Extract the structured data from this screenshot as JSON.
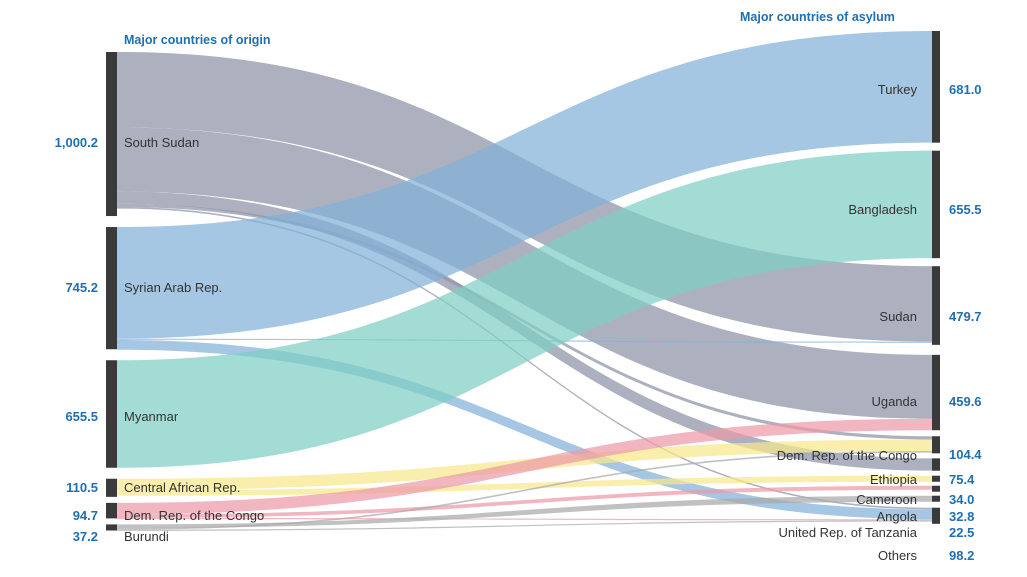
{
  "headers": {
    "origin": "Major countries of origin",
    "asylum": "Major countries of asylum"
  },
  "colors": {
    "node_bar": "#3a3a3a",
    "south_sudan": "#8d93a6",
    "syria": "#82b1d9",
    "myanmar": "#7fcfc3",
    "car": "#f7e88a",
    "drc": "#ec9aa6",
    "burundi": "#a9a9a9",
    "value_text": "#1f6fb2"
  },
  "origins": [
    {
      "key": "south_sudan",
      "name": "South Sudan",
      "value": "1,000.2"
    },
    {
      "key": "syria",
      "name": "Syrian Arab Rep.",
      "value": "745.2"
    },
    {
      "key": "myanmar",
      "name": "Myanmar",
      "value": "655.5"
    },
    {
      "key": "car",
      "name": "Central African Rep.",
      "value": "110.5"
    },
    {
      "key": "drc",
      "name": "Dem. Rep. of the Congo",
      "value": "94.7"
    },
    {
      "key": "burundi",
      "name": "Burundi",
      "value": "37.2"
    }
  ],
  "asylums": [
    {
      "key": "turkey",
      "name": "Turkey",
      "value": "681.0"
    },
    {
      "key": "bangladesh",
      "name": "Bangladesh",
      "value": "655.5"
    },
    {
      "key": "sudan",
      "name": "Sudan",
      "value": "479.7"
    },
    {
      "key": "uganda",
      "name": "Uganda",
      "value": "459.6"
    },
    {
      "key": "drc_a",
      "name": "Dem. Rep. of the Congo",
      "value": "104.4"
    },
    {
      "key": "ethiopia",
      "name": "Ethiopia",
      "value": "75.4"
    },
    {
      "key": "cameroon",
      "name": "Cameroon",
      "value": "34.0"
    },
    {
      "key": "angola",
      "name": "Angola",
      "value": "32.8"
    },
    {
      "key": "tanzania",
      "name": "United Rep. of Tanzania",
      "value": "22.5"
    },
    {
      "key": "others",
      "name": "Others",
      "value": "98.2"
    }
  ],
  "flows": [
    {
      "from": "south_sudan",
      "to": "sudan",
      "value": 460
    },
    {
      "from": "south_sudan",
      "to": "uganda",
      "value": 390
    },
    {
      "from": "south_sudan",
      "to": "ethiopia",
      "value": 75
    },
    {
      "from": "south_sudan",
      "to": "drc_a",
      "value": 20
    },
    {
      "from": "south_sudan",
      "to": "others",
      "value": 10
    },
    {
      "from": "syria",
      "to": "turkey",
      "value": 681
    },
    {
      "from": "syria",
      "to": "sudan",
      "value": 4
    },
    {
      "from": "syria",
      "to": "others",
      "value": 60
    },
    {
      "from": "myanmar",
      "to": "bangladesh",
      "value": 655.5
    },
    {
      "from": "car",
      "to": "drc_a",
      "value": 70
    },
    {
      "from": "car",
      "to": "cameroon",
      "value": 34
    },
    {
      "from": "drc",
      "to": "uganda",
      "value": 70
    },
    {
      "from": "drc",
      "to": "angola",
      "value": 22
    },
    {
      "from": "drc",
      "to": "others",
      "value": 3
    },
    {
      "from": "burundi",
      "to": "tanzania",
      "value": 22.5
    },
    {
      "from": "burundi",
      "to": "drc_a",
      "value": 10
    },
    {
      "from": "burundi",
      "to": "others",
      "value": 5
    }
  ]
}
